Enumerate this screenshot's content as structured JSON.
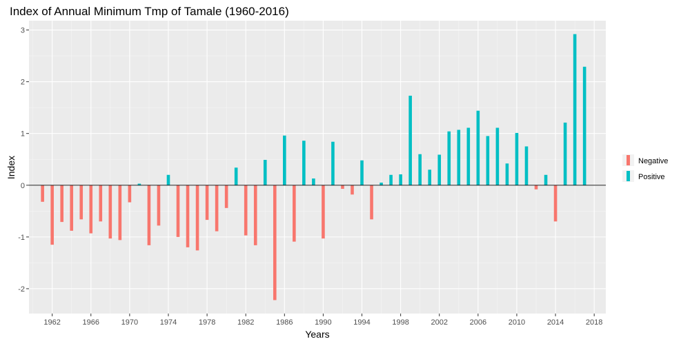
{
  "chart_data": {
    "type": "bar",
    "title": "Index of Annual Minimum Tmp of Tamale (1960-2016)",
    "xlabel": "Years",
    "ylabel": "Index",
    "xlim": [
      1959.6,
      2019.2
    ],
    "ylim": [
      -2.48,
      3.18
    ],
    "x_ticks": [
      1962,
      1966,
      1970,
      1974,
      1978,
      1982,
      1986,
      1990,
      1994,
      1998,
      2002,
      2006,
      2010,
      2014,
      2018
    ],
    "y_ticks": [
      -2,
      -1,
      0,
      1,
      2,
      3
    ],
    "grid": true,
    "legend": {
      "placement": "right",
      "entries": [
        {
          "name": "Negative",
          "color": "#F8766D"
        },
        {
          "name": "Positive",
          "color": "#00BFC4"
        }
      ]
    },
    "x": [
      1961,
      1962,
      1963,
      1964,
      1965,
      1966,
      1967,
      1968,
      1969,
      1970,
      1971,
      1972,
      1973,
      1974,
      1975,
      1976,
      1977,
      1978,
      1979,
      1980,
      1981,
      1982,
      1983,
      1984,
      1985,
      1986,
      1987,
      1988,
      1989,
      1990,
      1991,
      1992,
      1993,
      1994,
      1995,
      1996,
      1997,
      1998,
      1999,
      2000,
      2001,
      2002,
      2003,
      2004,
      2005,
      2006,
      2007,
      2008,
      2009,
      2010,
      2011,
      2012,
      2013,
      2014,
      2015,
      2016,
      2017
    ],
    "values": [
      -0.32,
      -1.15,
      -0.71,
      -0.88,
      -0.66,
      -0.93,
      -0.7,
      -1.03,
      -1.06,
      -0.33,
      0.03,
      -1.16,
      -0.78,
      0.2,
      -1.0,
      -1.2,
      -1.26,
      -0.67,
      -0.89,
      -0.44,
      0.34,
      -0.97,
      -1.16,
      0.49,
      -2.22,
      0.96,
      -1.09,
      0.86,
      0.13,
      -1.03,
      0.84,
      -0.07,
      -0.18,
      0.48,
      -0.66,
      0.05,
      0.2,
      0.21,
      1.73,
      0.6,
      0.3,
      0.59,
      1.04,
      1.07,
      1.11,
      1.44,
      0.95,
      1.11,
      0.42,
      1.01,
      0.75,
      -0.08,
      0.2,
      -0.7,
      1.21,
      2.92,
      2.29
    ],
    "colors": {
      "panel": "#EBEBEB",
      "grid_major": "#FFFFFF",
      "grid_minor": "#F5F5F5",
      "zero_line": "#000000"
    }
  }
}
